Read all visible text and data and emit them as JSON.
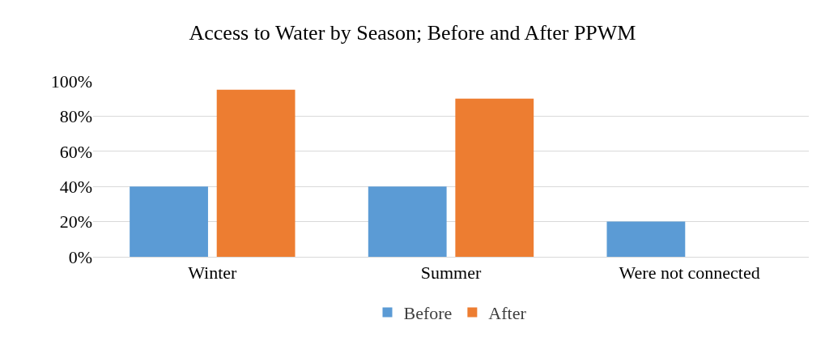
{
  "chart_data": {
    "type": "bar",
    "title": "Access to Water by Season; Before and After PPWM",
    "categories": [
      "Winter",
      "Summer",
      "Were not connected"
    ],
    "series": [
      {
        "name": "Before",
        "color": "#5b9bd5",
        "values": [
          40,
          40,
          20
        ]
      },
      {
        "name": "After",
        "color": "#ed7d31",
        "values": [
          95,
          90,
          0
        ]
      }
    ],
    "ylim": [
      0,
      100
    ],
    "yticks": [
      {
        "value": 0,
        "label": "0%"
      },
      {
        "value": 20,
        "label": "20%"
      },
      {
        "value": 40,
        "label": "40%"
      },
      {
        "value": 60,
        "label": "60%"
      },
      {
        "value": 80,
        "label": "80%"
      },
      {
        "value": 100,
        "label": "100%"
      }
    ],
    "grid": "y",
    "legend": "bottom"
  }
}
